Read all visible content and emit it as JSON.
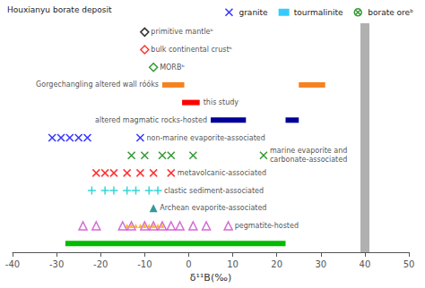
{
  "chart_data": {
    "type": "scatter",
    "xlabel": "δ¹¹B(‰)",
    "xlim": [
      -40,
      50
    ],
    "xticks": [
      -40,
      -30,
      -20,
      -10,
      0,
      10,
      20,
      30,
      40,
      50
    ],
    "tick_labels": "x",
    "grid": false,
    "legend": "top",
    "legend_title": "Houxianyu borate deposit",
    "legend_items": [
      {
        "name": "granite",
        "color": "blue",
        "marker": "x"
      },
      {
        "name": "tourmalinite",
        "color": "#00bfff",
        "marker": "bar"
      },
      {
        "name": "borate oreᵇ",
        "color": "green",
        "marker": "circled_x"
      }
    ],
    "reference_lines": [
      {
        "x": 40,
        "color": "#b0b0b0"
      }
    ],
    "series": [
      {
        "name": "primitive mantleᵇ",
        "type": "scatter",
        "marker": "diamond",
        "color": "black",
        "values": [
          -10
        ]
      },
      {
        "name": "bulk continental crustᵇ",
        "type": "scatter",
        "marker": "diamond",
        "color": "red",
        "values": [
          -10
        ]
      },
      {
        "name": "MORBᵇ",
        "type": "scatter",
        "marker": "diamond",
        "color": "green",
        "values": [
          -8
        ]
      },
      {
        "name": "Gorgechangling altered wall róóks",
        "type": "range",
        "color": "#f58220",
        "ranges": [
          [
            -6,
            -1
          ],
          [
            25,
            31
          ]
        ]
      },
      {
        "name": "this study",
        "type": "range",
        "color": "red",
        "ranges": [
          [
            -1.5,
            2.5
          ]
        ]
      },
      {
        "name": "altered magmatic rocks-hosted",
        "type": "range",
        "color": "#000099",
        "ranges": [
          [
            5,
            13
          ],
          [
            22,
            25
          ]
        ]
      },
      {
        "name": "non-marine evaporite-associated",
        "type": "scatter",
        "marker": "x",
        "color": "blue",
        "values": [
          -31,
          -29,
          -27,
          -25,
          -23,
          -11
        ]
      },
      {
        "name": "marine evaporite and\ncarbonate-associated",
        "type": "scatter",
        "marker": "x",
        "color": "green",
        "values": [
          -13,
          -10,
          -6,
          -4,
          1,
          17
        ]
      },
      {
        "name": "metavolcanic-associated",
        "type": "scatter",
        "marker": "x",
        "color": "red",
        "values": [
          -21,
          -19,
          -17,
          -14,
          -11,
          -8,
          -4
        ]
      },
      {
        "name": "clastic sediment-associated",
        "type": "scatter",
        "marker": "+",
        "color": "#00cccc",
        "values": [
          -22,
          -19,
          -17,
          -14,
          -12,
          -9,
          -7
        ]
      },
      {
        "name": "Archean evaporite-associated",
        "type": "scatter",
        "marker": "triangle",
        "color": "teal",
        "values": [
          -8
        ]
      },
      {
        "name": "pegmatite-hosted",
        "type": "scatter",
        "marker": "open_triangle",
        "color": "#cc44cc",
        "values": [
          -24,
          -21,
          -15,
          -13,
          -10,
          -8,
          -6,
          -4,
          -2,
          1,
          4,
          9
        ],
        "filled": {
          "marker": "triangle",
          "color": "orange",
          "values": [
            -14,
            -13,
            -12,
            -11,
            -10,
            -9,
            -8,
            -7,
            -6
          ]
        }
      },
      {
        "type": "range",
        "color": "#00bb00",
        "ranges": [
          [
            -28,
            22
          ]
        ]
      }
    ]
  }
}
